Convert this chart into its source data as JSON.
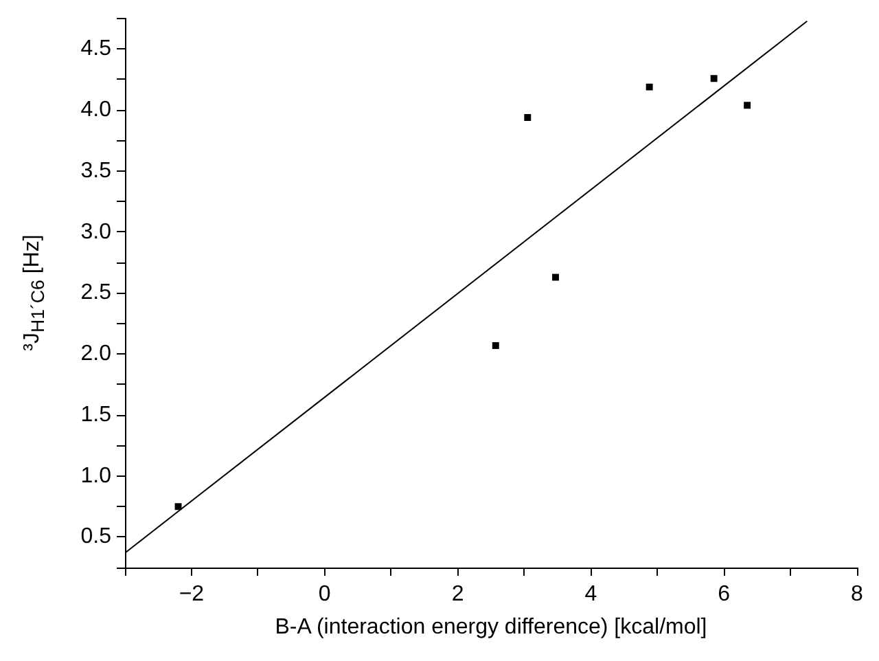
{
  "chart_data": {
    "type": "scatter",
    "xlabel": "B-A (interaction energy difference) [kcal/mol]",
    "ylabel": "³J$_{H1´C6}$ [Hz]",
    "xlim": [
      -3,
      8
    ],
    "ylim": [
      0.25,
      4.75
    ],
    "xticks": [
      {
        "value": -3,
        "label": null
      },
      {
        "value": -2,
        "label": "−2"
      },
      {
        "value": -1,
        "label": null
      },
      0,
      {
        "value": 1,
        "label": null
      },
      2,
      {
        "value": 3,
        "label": null
      },
      4,
      {
        "value": 5,
        "label": null
      },
      6,
      {
        "value": 7,
        "label": null
      },
      8
    ],
    "yticks": [
      {
        "value": 0.25,
        "label": null
      },
      {
        "value": 0.5,
        "label": "0.5"
      },
      {
        "value": 0.75,
        "label": null
      },
      {
        "value": 1,
        "label": "1.0"
      },
      {
        "value": 1.25,
        "label": null
      },
      {
        "value": 1.5,
        "label": "1.5"
      },
      {
        "value": 1.75,
        "label": null
      },
      {
        "value": 2,
        "label": "2.0"
      },
      {
        "value": 2.25,
        "label": null
      },
      {
        "value": 2.5,
        "label": "2.5"
      },
      {
        "value": 2.75,
        "label": null
      },
      {
        "value": 3,
        "label": "3.0"
      },
      {
        "value": 3.25,
        "label": null
      },
      {
        "value": 3.5,
        "label": "3.5"
      },
      {
        "value": 3.75,
        "label": null
      },
      {
        "value": 4,
        "label": "4.0"
      },
      {
        "value": 4.25,
        "label": null
      },
      {
        "value": 4.5,
        "label": "4.5"
      },
      {
        "value": 4.75,
        "label": null
      }
    ],
    "series": [
      {
        "type": "scatter",
        "color": "#000000",
        "marker": "square",
        "x": [
          -2.2,
          2.57,
          3.05,
          3.47,
          4.88,
          5.85,
          6.35
        ],
        "values": [
          0.75,
          2.07,
          3.94,
          2.63,
          4.19,
          4.26,
          4.04
        ]
      },
      {
        "type": "line",
        "color": "#000000",
        "marker": "none",
        "x": [
          -3,
          7.25
        ],
        "values": [
          0.37,
          4.73
        ]
      }
    ]
  }
}
